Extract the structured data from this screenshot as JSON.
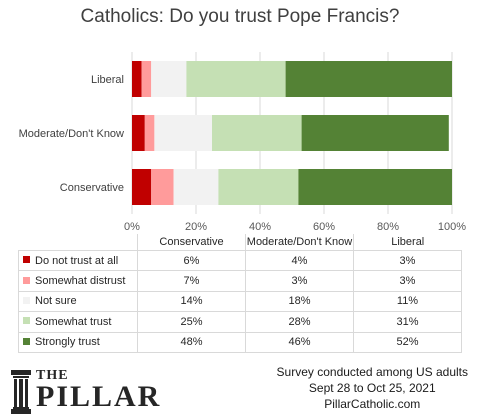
{
  "chart_data": {
    "type": "bar",
    "orientation": "horizontal",
    "stacked": true,
    "title": "Catholics: Do you trust Pope Francis?",
    "categories": [
      "Liberal",
      "Moderate/Don't Know",
      "Conservative"
    ],
    "series": [
      {
        "name": "Do not trust at all",
        "color": "#c00000",
        "values": [
          3,
          4,
          6
        ]
      },
      {
        "name": "Somewhat distrust",
        "color": "#ff9b9b",
        "values": [
          3,
          3,
          7
        ]
      },
      {
        "name": "Not sure",
        "color": "#f2f2f2",
        "values": [
          11,
          18,
          14
        ]
      },
      {
        "name": "Somewhat trust",
        "color": "#c5e0b4",
        "values": [
          31,
          28,
          25
        ]
      },
      {
        "name": "Strongly trust",
        "color": "#548235",
        "values": [
          52,
          46,
          48
        ]
      }
    ],
    "xlim": [
      0,
      100
    ],
    "x_ticks": [
      "0%",
      "20%",
      "40%",
      "60%",
      "80%",
      "100%"
    ],
    "grid": true,
    "legend": "data table below chart"
  },
  "table": {
    "columns": [
      "Conservative",
      "Moderate/Don't Know",
      "Liberal"
    ],
    "rows": [
      {
        "label": "Do not trust at all",
        "color": "#c00000",
        "values": [
          "6%",
          "4%",
          "3%"
        ]
      },
      {
        "label": "Somewhat distrust",
        "color": "#ff9b9b",
        "values": [
          "7%",
          "3%",
          "3%"
        ]
      },
      {
        "label": "Not sure",
        "color": "#f2f2f2",
        "values": [
          "14%",
          "18%",
          "11%"
        ]
      },
      {
        "label": "Somewhat trust",
        "color": "#c5e0b4",
        "values": [
          "25%",
          "28%",
          "31%"
        ]
      },
      {
        "label": "Strongly trust",
        "color": "#548235",
        "values": [
          "48%",
          "46%",
          "52%"
        ]
      }
    ]
  },
  "logo": {
    "the": "THE",
    "name": "PILLAR"
  },
  "footer": {
    "line1": "Survey conducted among US adults",
    "line2": "Sept 28 to Oct 25, 2021",
    "line3": "PillarCatholic.com"
  }
}
